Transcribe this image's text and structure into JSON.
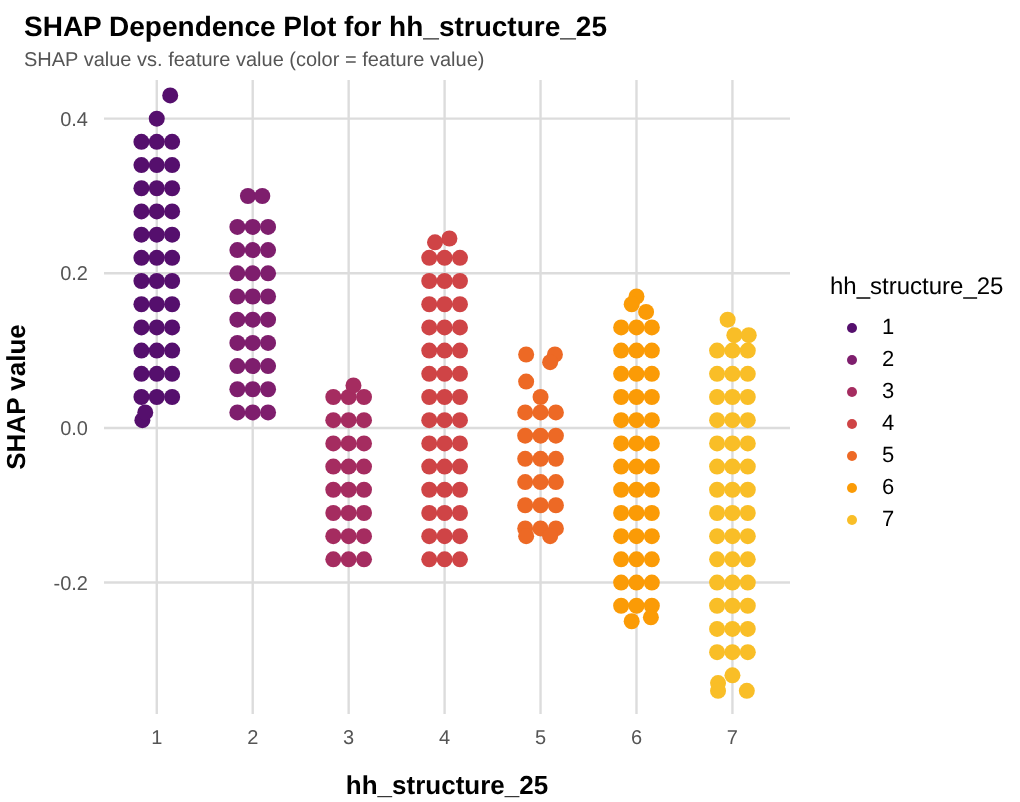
{
  "chart_data": {
    "type": "scatter",
    "title": "SHAP Dependence Plot for hh_structure_25",
    "subtitle": "SHAP value vs. feature value (color = feature value)",
    "xlabel": "hh_structure_25",
    "ylabel": "SHAP value",
    "legend_title": "hh_structure_25",
    "legend": "right",
    "grid": true,
    "marker": "circle",
    "xlim": [
      0.45,
      7.6
    ],
    "xticks": [
      1,
      2,
      3,
      4,
      5,
      6,
      7
    ],
    "ylim": [
      -0.37,
      0.45
    ],
    "yticks": [
      -0.2,
      {
        "value": 0,
        "label": "0.0"
      },
      0.2,
      0.4
    ],
    "series": [
      {
        "name": "1",
        "color": "#550f6d",
        "x": [
          0.84,
          1.0,
          1.16,
          0.84,
          1.0,
          1.16,
          0.84,
          1.0,
          1.16,
          0.84,
          1.0,
          1.16,
          0.84,
          1.0,
          1.16,
          0.84,
          1.0,
          1.16,
          0.84,
          1.0,
          1.16,
          0.84,
          1.0,
          1.16,
          0.84,
          1.0,
          1.16,
          0.84,
          1.0,
          1.16,
          0.84,
          1.0,
          1.16,
          0.84,
          1.0,
          1.16,
          1.14,
          1.0,
          0.85,
          0.88
        ],
        "values": [
          0.04,
          0.04,
          0.04,
          0.07,
          0.07,
          0.07,
          0.1,
          0.1,
          0.1,
          0.13,
          0.13,
          0.13,
          0.16,
          0.16,
          0.16,
          0.19,
          0.19,
          0.19,
          0.22,
          0.22,
          0.22,
          0.25,
          0.25,
          0.25,
          0.28,
          0.28,
          0.28,
          0.31,
          0.31,
          0.31,
          0.34,
          0.34,
          0.34,
          0.37,
          0.37,
          0.37,
          0.43,
          0.4,
          0.01,
          0.02
        ]
      },
      {
        "name": "2",
        "color": "#7e1e6d",
        "x": [
          1.84,
          2.0,
          2.16,
          1.84,
          2.0,
          2.16,
          1.84,
          2.0,
          2.16,
          1.84,
          2.0,
          2.16,
          1.84,
          2.0,
          2.16,
          1.84,
          2.0,
          2.16,
          1.84,
          2.0,
          2.16,
          1.84,
          2.0,
          2.16,
          1.84,
          2.0,
          2.16,
          1.95,
          2.1
        ],
        "values": [
          0.02,
          0.02,
          0.02,
          0.05,
          0.05,
          0.05,
          0.08,
          0.08,
          0.08,
          0.11,
          0.11,
          0.11,
          0.14,
          0.14,
          0.14,
          0.17,
          0.17,
          0.17,
          0.2,
          0.2,
          0.2,
          0.23,
          0.23,
          0.23,
          0.26,
          0.26,
          0.26,
          0.3,
          0.3
        ]
      },
      {
        "name": "3",
        "color": "#a52c60",
        "x": [
          2.84,
          3.0,
          3.16,
          2.84,
          3.0,
          3.16,
          2.84,
          3.0,
          3.16,
          2.84,
          3.0,
          3.16,
          2.84,
          3.0,
          3.16,
          2.84,
          3.0,
          3.16,
          2.84,
          3.0,
          3.16,
          2.84,
          3.0,
          3.16,
          3.05
        ],
        "values": [
          -0.17,
          -0.17,
          -0.17,
          -0.14,
          -0.14,
          -0.14,
          -0.11,
          -0.11,
          -0.11,
          -0.08,
          -0.08,
          -0.08,
          -0.05,
          -0.05,
          -0.05,
          -0.02,
          -0.02,
          -0.02,
          0.01,
          0.01,
          0.01,
          0.04,
          0.04,
          0.04,
          0.055
        ]
      },
      {
        "name": "4",
        "color": "#cf4446",
        "x": [
          3.84,
          4.0,
          4.16,
          3.84,
          4.0,
          4.16,
          3.84,
          4.0,
          4.16,
          3.84,
          4.0,
          4.16,
          3.84,
          4.0,
          4.16,
          3.84,
          4.0,
          4.16,
          3.84,
          4.0,
          4.16,
          3.84,
          4.0,
          4.16,
          3.84,
          4.0,
          4.16,
          3.84,
          4.0,
          4.16,
          3.84,
          4.0,
          4.16,
          3.84,
          4.0,
          4.16,
          3.84,
          4.0,
          4.16,
          3.84,
          4.0,
          4.16,
          4.05,
          3.9
        ],
        "values": [
          -0.17,
          -0.17,
          -0.17,
          -0.14,
          -0.14,
          -0.14,
          -0.11,
          -0.11,
          -0.11,
          -0.08,
          -0.08,
          -0.08,
          -0.05,
          -0.05,
          -0.05,
          -0.02,
          -0.02,
          -0.02,
          0.01,
          0.01,
          0.01,
          0.04,
          0.04,
          0.04,
          0.07,
          0.07,
          0.07,
          0.1,
          0.1,
          0.1,
          0.13,
          0.13,
          0.13,
          0.16,
          0.16,
          0.16,
          0.19,
          0.19,
          0.19,
          0.22,
          0.22,
          0.22,
          0.245,
          0.24
        ]
      },
      {
        "name": "5",
        "color": "#ed6925",
        "x": [
          4.84,
          5.0,
          5.16,
          4.84,
          5.0,
          5.16,
          4.84,
          5.0,
          5.16,
          4.84,
          5.0,
          5.16,
          4.84,
          5.0,
          5.16,
          4.84,
          5.0,
          5.16,
          4.85,
          5.15,
          5.1,
          4.85,
          5.0,
          4.85,
          5.1
        ],
        "values": [
          -0.13,
          -0.13,
          -0.13,
          -0.1,
          -0.1,
          -0.1,
          -0.07,
          -0.07,
          -0.07,
          -0.04,
          -0.04,
          -0.04,
          -0.01,
          -0.01,
          -0.01,
          0.02,
          0.02,
          0.02,
          0.095,
          0.095,
          0.085,
          0.06,
          0.04,
          -0.14,
          -0.14
        ]
      },
      {
        "name": "6",
        "color": "#fb9b06",
        "x": [
          5.84,
          6.0,
          6.16,
          5.84,
          6.0,
          6.16,
          5.84,
          6.0,
          6.16,
          5.84,
          6.0,
          6.16,
          5.84,
          6.0,
          6.16,
          5.84,
          6.0,
          6.16,
          5.84,
          6.0,
          6.16,
          5.84,
          6.0,
          6.16,
          5.84,
          6.0,
          6.16,
          5.84,
          6.0,
          6.16,
          5.84,
          6.0,
          6.16,
          5.84,
          6.0,
          6.16,
          5.84,
          6.0,
          6.16,
          6.0,
          5.95,
          6.1,
          5.95,
          6.15
        ],
        "values": [
          -0.23,
          -0.23,
          -0.23,
          -0.2,
          -0.2,
          -0.2,
          -0.17,
          -0.17,
          -0.17,
          -0.14,
          -0.14,
          -0.14,
          -0.11,
          -0.11,
          -0.11,
          -0.08,
          -0.08,
          -0.08,
          -0.05,
          -0.05,
          -0.05,
          -0.02,
          -0.02,
          -0.02,
          0.01,
          0.01,
          0.01,
          0.04,
          0.04,
          0.04,
          0.07,
          0.07,
          0.07,
          0.1,
          0.1,
          0.1,
          0.13,
          0.13,
          0.13,
          0.17,
          0.16,
          0.15,
          -0.25,
          -0.245
        ]
      },
      {
        "name": "7",
        "color": "#f9be27",
        "x": [
          6.84,
          7.0,
          7.16,
          6.84,
          7.0,
          7.16,
          6.84,
          7.0,
          7.16,
          6.84,
          7.0,
          7.16,
          6.84,
          7.0,
          7.16,
          6.84,
          7.0,
          7.16,
          6.84,
          7.0,
          7.16,
          6.84,
          7.0,
          7.16,
          6.84,
          7.0,
          7.16,
          6.84,
          7.0,
          7.16,
          6.84,
          7.0,
          7.16,
          6.84,
          7.0,
          7.16,
          6.84,
          7.0,
          7.16,
          6.84,
          7.0,
          7.16,
          6.95,
          7.02,
          7.17,
          6.85,
          6.85,
          7.15,
          7.0
        ],
        "values": [
          -0.29,
          -0.29,
          -0.29,
          -0.26,
          -0.26,
          -0.26,
          -0.23,
          -0.23,
          -0.23,
          -0.2,
          -0.2,
          -0.2,
          -0.17,
          -0.17,
          -0.17,
          -0.14,
          -0.14,
          -0.14,
          -0.11,
          -0.11,
          -0.11,
          -0.08,
          -0.08,
          -0.08,
          -0.05,
          -0.05,
          -0.05,
          -0.02,
          -0.02,
          -0.02,
          0.01,
          0.01,
          0.01,
          0.04,
          0.04,
          0.04,
          0.07,
          0.07,
          0.07,
          0.1,
          0.1,
          0.1,
          0.14,
          0.12,
          0.12,
          -0.33,
          -0.34,
          -0.34,
          -0.32
        ]
      }
    ]
  }
}
